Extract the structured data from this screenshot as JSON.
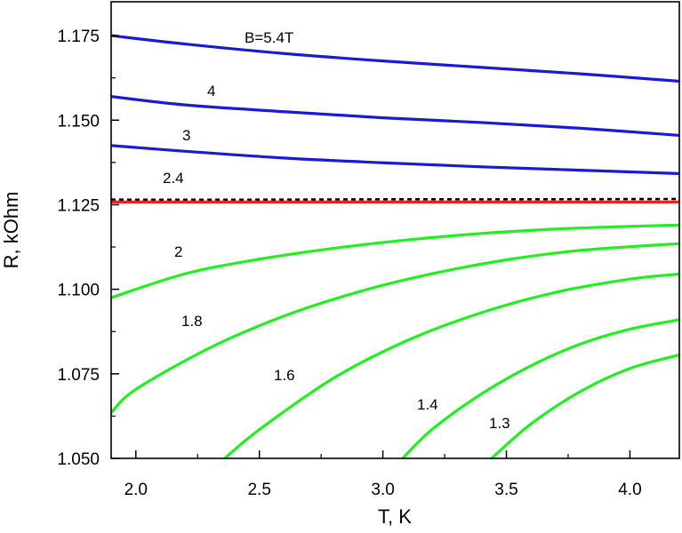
{
  "chart_data": {
    "type": "line",
    "title": "",
    "xlabel": "T, K",
    "ylabel": "R, kOhm",
    "xlim": [
      1.9,
      4.2
    ],
    "ylim": [
      1.05,
      1.185
    ],
    "xticks": [
      2.0,
      2.5,
      3.0,
      3.5,
      4.0
    ],
    "xtick_labels": [
      "2.0",
      "2.5",
      "3.0",
      "3.5",
      "4.0"
    ],
    "yticks": [
      1.05,
      1.075,
      1.1,
      1.125,
      1.15,
      1.175
    ],
    "ytick_labels": [
      "1.050",
      "1.075",
      "1.100",
      "1.125",
      "1.150",
      "1.175"
    ],
    "grid": false,
    "legend": "none",
    "colors": {
      "high_field": "#1a1ad6",
      "low_field": "#22ee22",
      "threshold": "#ee2222",
      "dashed": "#000000"
    },
    "series": [
      {
        "name": "B=5.4T",
        "color": "#1a1ad6",
        "style": "solid",
        "x": [
          1.9,
          2.2,
          2.6,
          3.0,
          3.4,
          3.8,
          4.2
        ],
        "y": [
          1.175,
          1.1725,
          1.1697,
          1.1675,
          1.1656,
          1.1637,
          1.1615
        ]
      },
      {
        "name": "4",
        "color": "#1a1ad6",
        "style": "solid",
        "x": [
          1.9,
          2.2,
          2.6,
          3.0,
          3.4,
          3.8,
          4.2
        ],
        "y": [
          1.157,
          1.1545,
          1.1525,
          1.1507,
          1.1493,
          1.1476,
          1.1455
        ]
      },
      {
        "name": "3",
        "color": "#1a1ad6",
        "style": "solid",
        "x": [
          1.9,
          2.2,
          2.6,
          3.0,
          3.4,
          3.8,
          4.2
        ],
        "y": [
          1.1425,
          1.1408,
          1.1388,
          1.1374,
          1.1362,
          1.1352,
          1.1342
        ]
      },
      {
        "name": "2.4",
        "color": "#000000",
        "style": "dashed",
        "x": [
          1.9,
          2.5,
          3.0,
          3.5,
          4.2
        ],
        "y": [
          1.1265,
          1.1265,
          1.1266,
          1.1266,
          1.1267
        ]
      },
      {
        "name": "",
        "color": "#ee2222",
        "style": "solid",
        "x": [
          1.9,
          4.2
        ],
        "y": [
          1.1258,
          1.1258
        ]
      },
      {
        "name": "2",
        "color": "#22ee22",
        "style": "solid",
        "x": [
          1.9,
          2.2,
          2.5,
          2.8,
          3.1,
          3.4,
          3.7,
          4.0,
          4.2
        ],
        "y": [
          1.0975,
          1.1046,
          1.1089,
          1.1121,
          1.1146,
          1.1165,
          1.1178,
          1.1186,
          1.119
        ]
      },
      {
        "name": "1.8",
        "color": "#22ee22",
        "style": "solid",
        "x": [
          1.9,
          2.0,
          2.3,
          2.6,
          2.9,
          3.2,
          3.5,
          3.8,
          4.2
        ],
        "y": [
          1.0635,
          1.0704,
          1.0827,
          1.0921,
          1.0992,
          1.1046,
          1.1087,
          1.1115,
          1.1135
        ]
      },
      {
        "name": "1.6",
        "color": "#22ee22",
        "style": "solid",
        "x": [
          2.36,
          2.5,
          2.8,
          3.1,
          3.4,
          3.7,
          4.0,
          4.2
        ],
        "y": [
          1.05,
          1.0585,
          1.0737,
          1.0849,
          1.0931,
          1.0991,
          1.103,
          1.1045
        ]
      },
      {
        "name": "1.4",
        "color": "#22ee22",
        "style": "solid",
        "x": [
          3.08,
          3.2,
          3.4,
          3.6,
          3.8,
          4.0,
          4.2
        ],
        "y": [
          1.05,
          1.0586,
          1.0691,
          1.0774,
          1.0838,
          1.0882,
          1.091
        ]
      },
      {
        "name": "1.3",
        "color": "#22ee22",
        "style": "solid",
        "x": [
          3.44,
          3.6,
          3.8,
          4.0,
          4.2
        ],
        "y": [
          1.05,
          1.0602,
          1.0698,
          1.0766,
          1.0806
        ]
      }
    ],
    "annotations": [
      {
        "text": "B=5.4T",
        "series": "B=5.4T"
      },
      {
        "text": "4",
        "series": "4"
      },
      {
        "text": "3",
        "series": "3"
      },
      {
        "text": "2.4",
        "series": "2.4"
      },
      {
        "text": "2",
        "series": "2"
      },
      {
        "text": "1.8",
        "series": "1.8"
      },
      {
        "text": "1.6",
        "series": "1.6"
      },
      {
        "text": "1.4",
        "series": "1.4"
      },
      {
        "text": "1.3",
        "series": "1.3"
      }
    ]
  }
}
